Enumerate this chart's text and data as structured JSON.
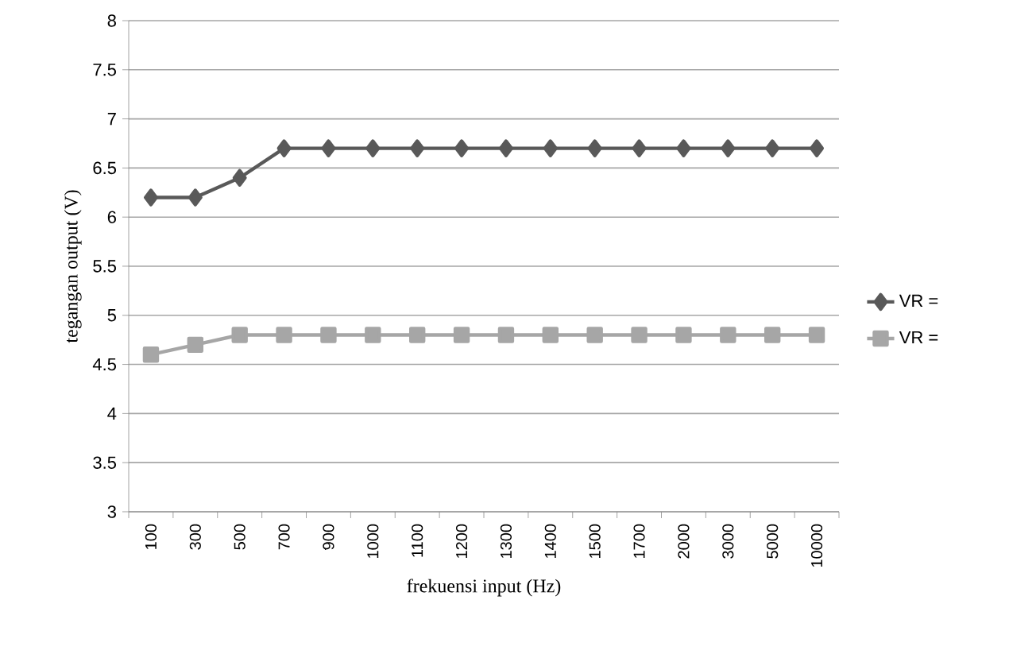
{
  "chart_data": {
    "type": "line",
    "xlabel": "frekuensi input (Hz)",
    "ylabel": "tegangan output (V)",
    "categories": [
      "100",
      "300",
      "500",
      "700",
      "900",
      "1000",
      "1100",
      "1200",
      "1300",
      "1400",
      "1500",
      "1700",
      "2000",
      "3000",
      "5000",
      "10000"
    ],
    "series": [
      {
        "name": "VR =",
        "color": "#595959",
        "marker": "diamond",
        "values": [
          6.2,
          6.2,
          6.4,
          6.7,
          6.7,
          6.7,
          6.7,
          6.7,
          6.7,
          6.7,
          6.7,
          6.7,
          6.7,
          6.7,
          6.7,
          6.7
        ]
      },
      {
        "name": "VR =",
        "color": "#a6a6a6",
        "marker": "square",
        "values": [
          4.6,
          4.7,
          4.8,
          4.8,
          4.8,
          4.8,
          4.8,
          4.8,
          4.8,
          4.8,
          4.8,
          4.8,
          4.8,
          4.8,
          4.8,
          4.8
        ]
      }
    ],
    "ylim": [
      3,
      8
    ],
    "yticks": [
      3,
      3.5,
      4,
      4.5,
      5,
      5.5,
      6,
      6.5,
      7,
      7.5,
      8
    ],
    "grid": "y",
    "legend": "right"
  }
}
